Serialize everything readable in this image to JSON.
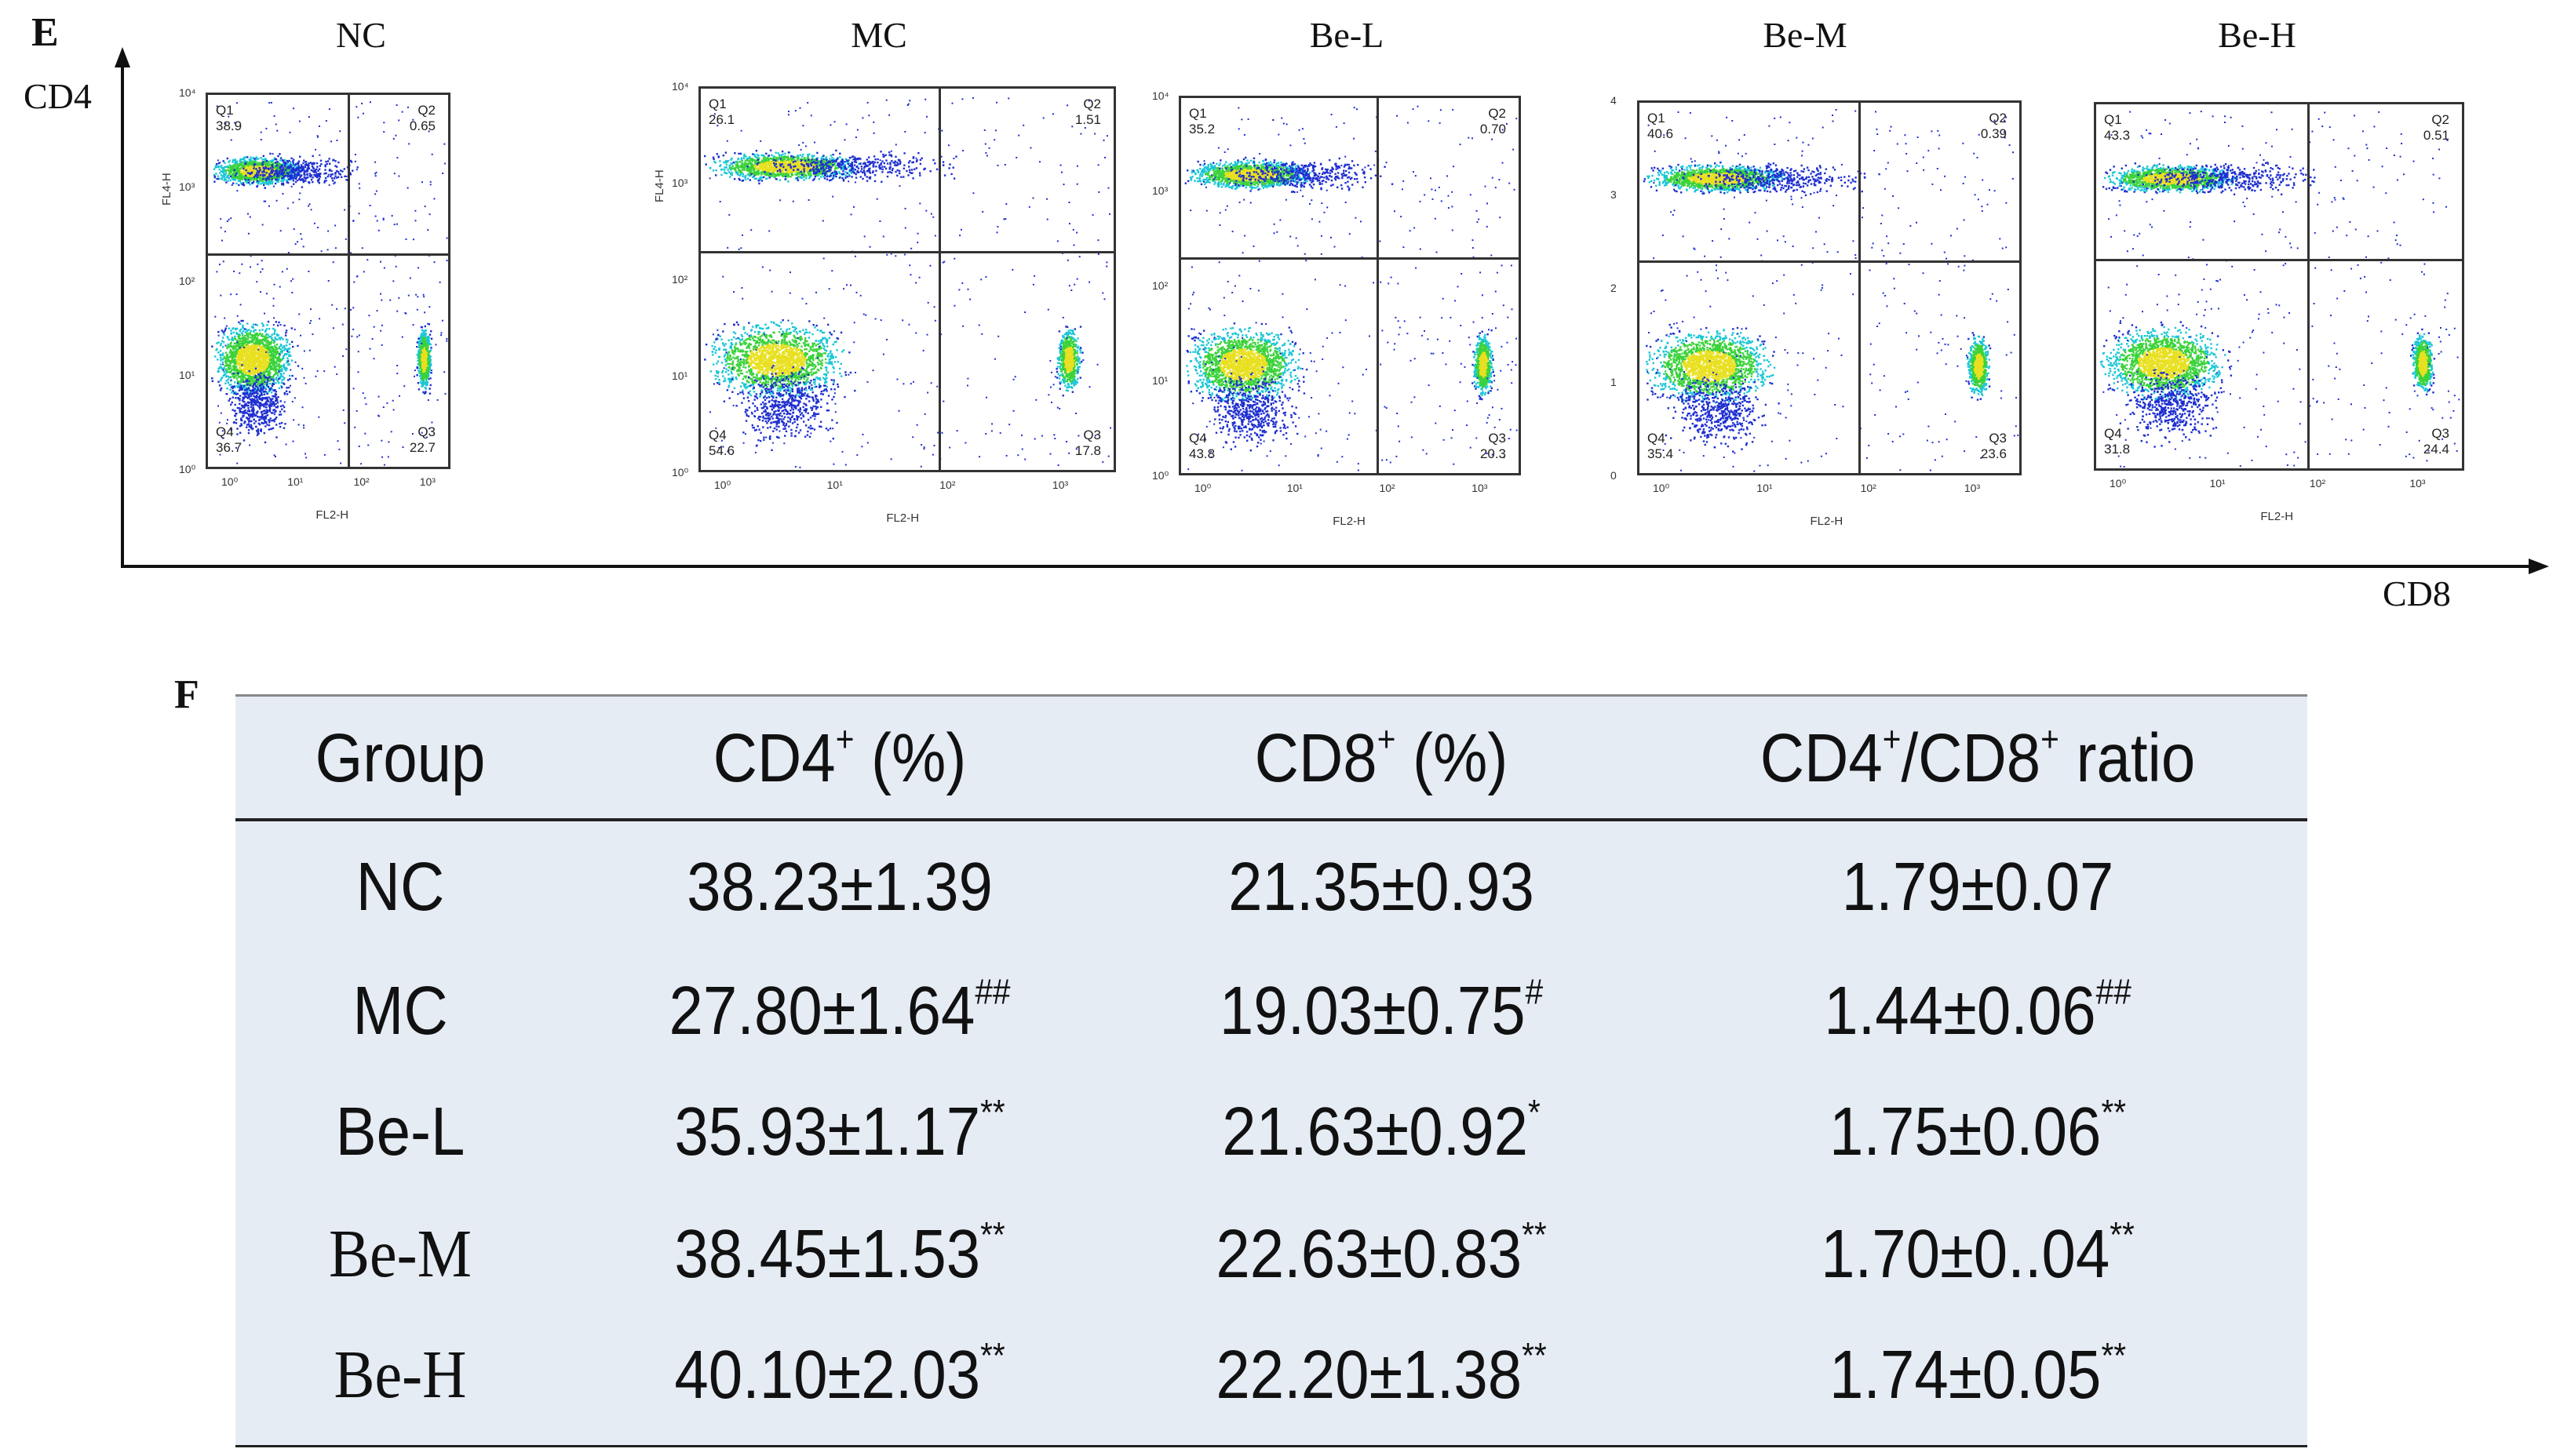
{
  "panel_e": {
    "letter": "E",
    "y_axis_label": "CD4",
    "x_axis_label": "CD8",
    "plots": [
      {
        "group": "NC",
        "q1": "38.9",
        "q2": "0.65",
        "q3": "22.7",
        "q4": "36.7",
        "y_axis": "FL4-H",
        "x_axis": "FL2-H",
        "y_ticks": [
          "10⁴",
          "10³",
          "10²",
          "10¹",
          "10⁰"
        ],
        "x_ticks": [
          "10⁰",
          "10¹",
          "10²",
          "10³"
        ]
      },
      {
        "group": "MC",
        "q1": "26.1",
        "q2": "1.51",
        "q3": "17.8",
        "q4": "54.6",
        "y_axis": "FL4-H",
        "x_axis": "FL2-H",
        "y_ticks": [
          "10⁴",
          "10³",
          "10²",
          "10¹",
          "10⁰"
        ],
        "x_ticks": [
          "10⁰",
          "10¹",
          "10²",
          "10³"
        ]
      },
      {
        "group": "Be-L",
        "q1": "35.2",
        "q2": "0.70",
        "q3": "20.3",
        "q4": "43.8",
        "y_axis": "",
        "x_axis": "FL2-H",
        "y_ticks": [
          "10⁴",
          "10³",
          "10²",
          "10¹",
          "10⁰"
        ],
        "x_ticks": [
          "10⁰",
          "10¹",
          "10²",
          "10³"
        ]
      },
      {
        "group": "Be-M",
        "q1": "40.6",
        "q2": "0.39",
        "q3": "23.6",
        "q4": "35.4",
        "y_axis": "",
        "x_axis": "FL2-H",
        "y_ticks": [
          "4",
          "3",
          "2",
          "1",
          "0"
        ],
        "x_ticks": [
          "10⁰",
          "10¹",
          "10²",
          "10³"
        ]
      },
      {
        "group": "Be-H",
        "q1": "43.3",
        "q2": "0.51",
        "q3": "24.4",
        "q4": "31.8",
        "y_axis": "",
        "x_axis": "FL2-H",
        "y_ticks": [
          "",
          "",
          "",
          "",
          ""
        ],
        "x_ticks": [
          "10⁰",
          "10¹",
          "10²",
          "10³"
        ]
      }
    ],
    "colors": {
      "dot_blue": "#1f2fd0",
      "dot_cyan": "#19c6d6",
      "dot_green": "#3ad23a",
      "dot_yellow": "#e8e020"
    }
  },
  "panel_f": {
    "letter": "F",
    "headers": {
      "group": "Group",
      "cd4": "CD4",
      "cd4_unit": " (%)",
      "cd8": "CD8",
      "cd8_unit": " (%)",
      "ratio_a": "CD4",
      "ratio_b": "/CD8",
      "ratio_c": " ratio",
      "plus": "+"
    },
    "rows": [
      {
        "group": "NC",
        "cd4": "38.23±1.39",
        "cd4_sig": "",
        "cd8": "21.35±0.93",
        "cd8_sig": "",
        "ratio": "1.79±0.07",
        "ratio_sig": ""
      },
      {
        "group": "MC",
        "cd4": "27.80±1.64",
        "cd4_sig": "##",
        "cd8": "19.03±0.75",
        "cd8_sig": "#",
        "ratio": "1.44±0.06",
        "ratio_sig": "##"
      },
      {
        "group": "Be-L",
        "cd4": "35.93±1.17",
        "cd4_sig": "**",
        "cd8": "21.63±0.92",
        "cd8_sig": "*",
        "ratio": "1.75±0.06",
        "ratio_sig": "**"
      },
      {
        "group": "Be-M",
        "cd4": "38.45±1.53",
        "cd4_sig": "**",
        "cd8": "22.63±0.83",
        "cd8_sig": "**",
        "ratio": "1.70±0..04",
        "ratio_sig": "**"
      },
      {
        "group": "Be-H",
        "cd4": "40.10±2.03",
        "cd4_sig": "**",
        "cd8": "22.20±1.38",
        "cd8_sig": "**",
        "ratio": "1.74±0.05",
        "ratio_sig": "**"
      }
    ]
  }
}
